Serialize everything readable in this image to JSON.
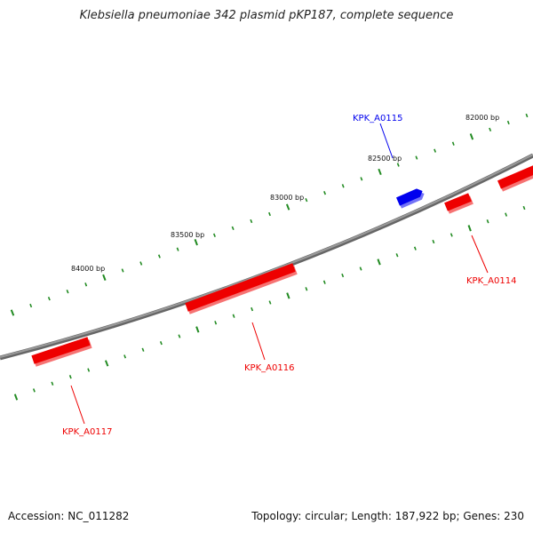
{
  "title": "Klebsiella pneumoniae 342 plasmid pKP187, complete sequence",
  "footer": {
    "accession": "Accession: NC_011282",
    "summary": "Topology: circular; Length: 187,922 bp; Genes: 230"
  },
  "colors": {
    "backbone": "#888888",
    "forward_gene": "#0000ee",
    "reverse_gene": "#ee0000",
    "ticks": "#228b22"
  },
  "scale_labels": [
    {
      "bp": 82000,
      "text": "82000 bp"
    },
    {
      "bp": 82500,
      "text": "82500 bp"
    },
    {
      "bp": 83000,
      "text": "83000 bp"
    },
    {
      "bp": 83500,
      "text": "83500 bp"
    },
    {
      "bp": 84000,
      "text": "84000 bp"
    }
  ],
  "genes": [
    {
      "id": "KPK_A0115",
      "strand": "forward",
      "label": "KPK_A0115"
    },
    {
      "id": "KPK_A0114",
      "strand": "reverse",
      "label": "KPK_A0114"
    },
    {
      "id": "KPK_A0116",
      "strand": "reverse",
      "label": "KPK_A0116"
    },
    {
      "id": "KPK_A0117",
      "strand": "reverse",
      "label": "KPK_A0117"
    }
  ]
}
